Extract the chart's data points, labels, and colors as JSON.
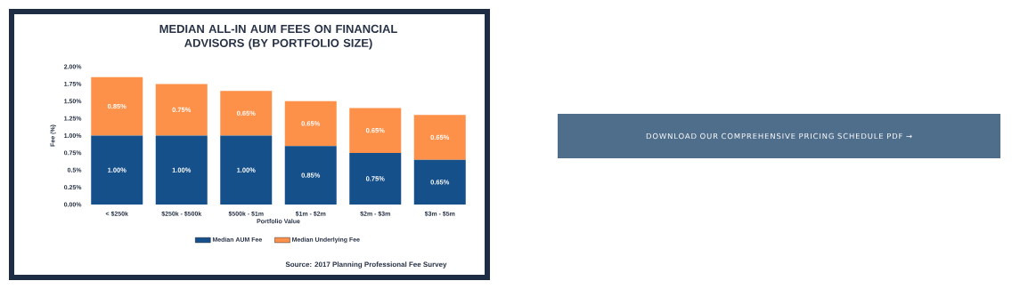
{
  "chart_data": {
    "type": "bar",
    "title": "MEDIAN ALL-IN AUM FEES ON FINANCIAL ADVISORS (BY PORTFOLIO SIZE)",
    "xlabel": "Portfolio Value",
    "ylabel": "Fee (%)",
    "categories": [
      "< $250k",
      "$250k - $500k",
      "$500k - $1m",
      "$1m - $2m",
      "$2m - $3m",
      "$3m - $5m"
    ],
    "stacked": true,
    "series": [
      {
        "name": "Median AUM Fee",
        "color": "#16508a",
        "values": [
          1.0,
          1.0,
          1.0,
          0.85,
          0.75,
          0.65
        ],
        "value_labels": [
          "1.00%",
          "1.00%",
          "1.00%",
          "0.85%",
          "0.75%",
          "0.65%"
        ]
      },
      {
        "name": "Median Underlying Fee",
        "color": "#fd914a",
        "values": [
          0.85,
          0.75,
          0.65,
          0.65,
          0.65,
          0.65
        ],
        "value_labels": [
          "0.85%",
          "0.75%",
          "0.65%",
          "0.65%",
          "0.65%",
          "0.65%"
        ]
      }
    ],
    "ylim": [
      0,
      2
    ],
    "yticks": [
      {
        "value": 0,
        "label": "0.00%"
      },
      {
        "value": 0.25,
        "label": "0.25%"
      },
      {
        "value": 0.5,
        "label": "0.5%"
      },
      {
        "value": 0.75,
        "label": "0.75%"
      },
      {
        "value": 1,
        "label": "1.00%"
      },
      {
        "value": 1.25,
        "label": "1.25%"
      },
      {
        "value": 1.5,
        "label": "1.50%"
      },
      {
        "value": 1.75,
        "label": "1.75%"
      },
      {
        "value": 2,
        "label": "2.00%"
      }
    ],
    "grid": false,
    "legend": "bottom",
    "annotations": [
      "Source: 2017 Planning Professional Fee Survey",
      "DOWNLOAD OUR COMPREHENSIVE PRICING SCHEDULE PDF →"
    ]
  }
}
